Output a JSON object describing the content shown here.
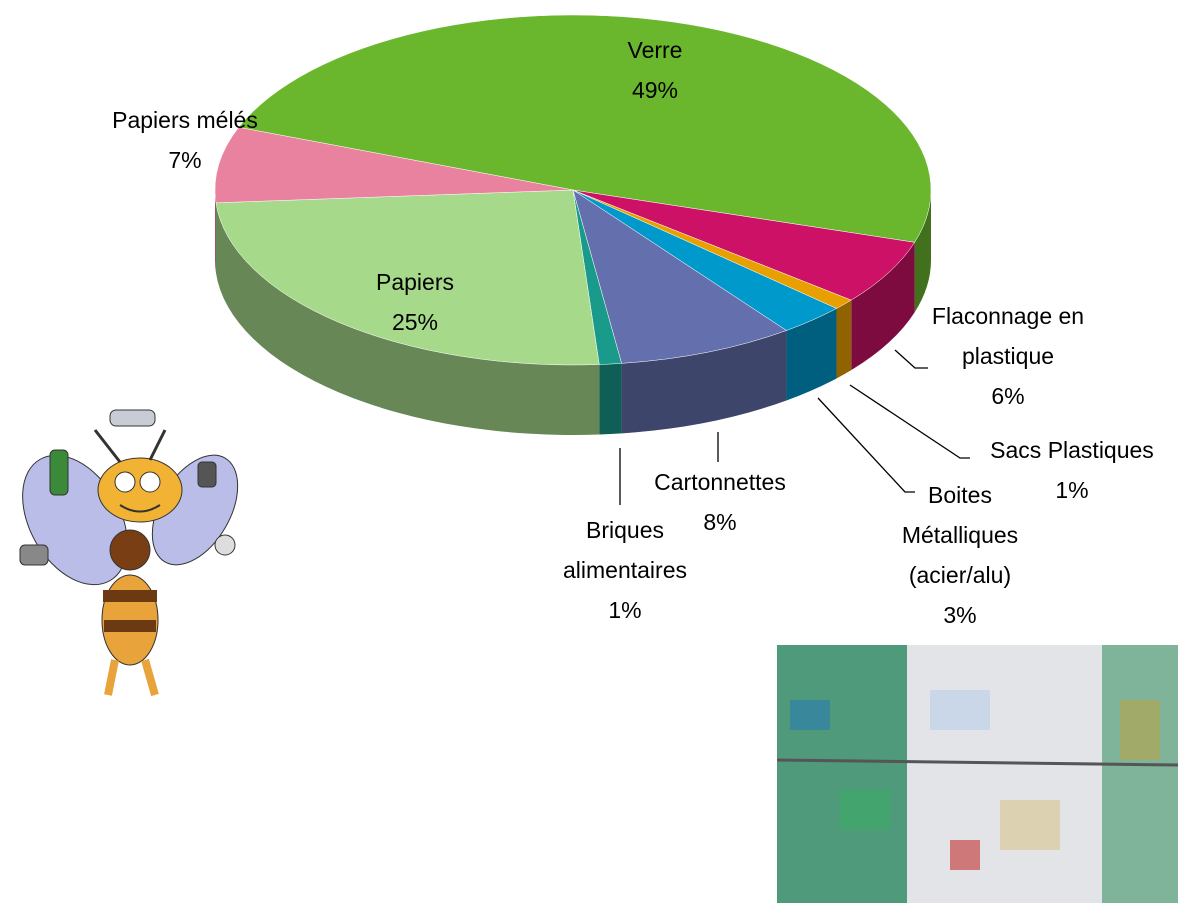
{
  "chart_data": {
    "type": "pie",
    "categories": [
      "Verre",
      "Flaconnage en plastique",
      "Sacs Plastiques",
      "Boites Métalliques (acier/alu)",
      "Cartonnettes",
      "Briques alimentaires",
      "Papiers",
      "Papiers mélés"
    ],
    "values": [
      49,
      6,
      1,
      3,
      8,
      1,
      25,
      7
    ],
    "value_labels": [
      "49%",
      "6%",
      "1%",
      "3%",
      "8%",
      "1%",
      "25%",
      "7%"
    ],
    "colors": [
      "#6ab72e",
      "#cc1166",
      "#e8a000",
      "#0099cc",
      "#6470ad",
      "#1a9a8a",
      "#a6da8a",
      "#e8829f"
    ]
  }
}
